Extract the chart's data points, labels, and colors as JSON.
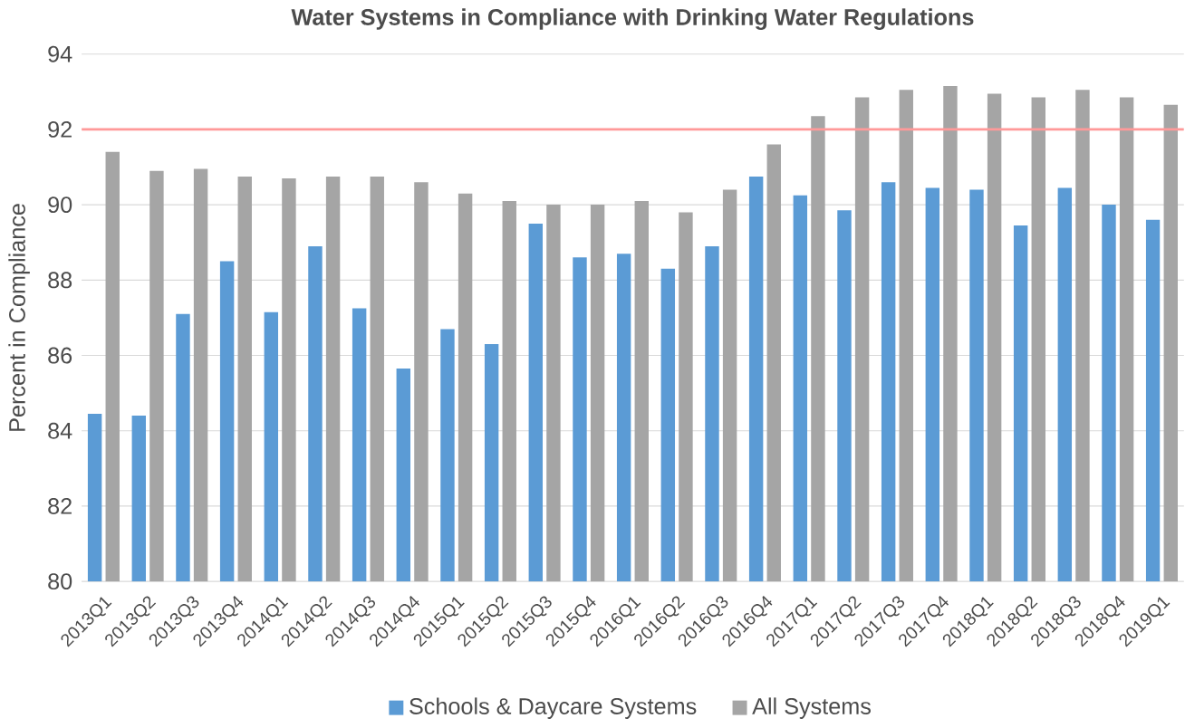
{
  "chart_data": {
    "type": "bar",
    "title": "Water Systems in Compliance with Drinking Water Regulations",
    "ylabel": "Percent in Compliance",
    "categories": [
      "2013Q1",
      "2013Q2",
      "2013Q3",
      "2013Q4",
      "2014Q1",
      "2014Q2",
      "2014Q3",
      "2014Q4",
      "2015Q1",
      "2015Q2",
      "2015Q3",
      "2015Q4",
      "2016Q1",
      "2016Q2",
      "2016Q3",
      "2016Q4",
      "2017Q1",
      "2017Q2",
      "2017Q3",
      "2017Q4",
      "2018Q1",
      "2018Q2",
      "2018Q3",
      "2018Q4",
      "2019Q1"
    ],
    "series": [
      {
        "name": "Schools & Daycare Systems",
        "color": "#5b9bd5",
        "values": [
          84.45,
          84.4,
          87.1,
          88.5,
          87.15,
          88.9,
          87.25,
          85.65,
          86.7,
          86.3,
          89.5,
          88.6,
          88.7,
          88.3,
          88.9,
          90.75,
          90.25,
          89.85,
          90.6,
          90.45,
          90.4,
          89.45,
          90.45,
          90.0,
          89.6
        ]
      },
      {
        "name": "All Systems",
        "color": "#a5a5a5",
        "values": [
          91.4,
          90.9,
          90.95,
          90.75,
          90.7,
          90.75,
          90.75,
          90.6,
          90.3,
          90.1,
          90.0,
          90.0,
          90.1,
          89.8,
          90.4,
          91.6,
          92.35,
          92.85,
          93.05,
          93.15,
          92.95,
          92.85,
          93.05,
          92.85,
          92.65
        ]
      }
    ],
    "ylim": [
      80,
      94
    ],
    "yticks": [
      80,
      82,
      84,
      86,
      88,
      90,
      92,
      94
    ],
    "grid": "y",
    "legend": "bottom",
    "ref_lines": [
      {
        "axis": "y",
        "value": 92,
        "color": "#ff9999"
      }
    ]
  }
}
